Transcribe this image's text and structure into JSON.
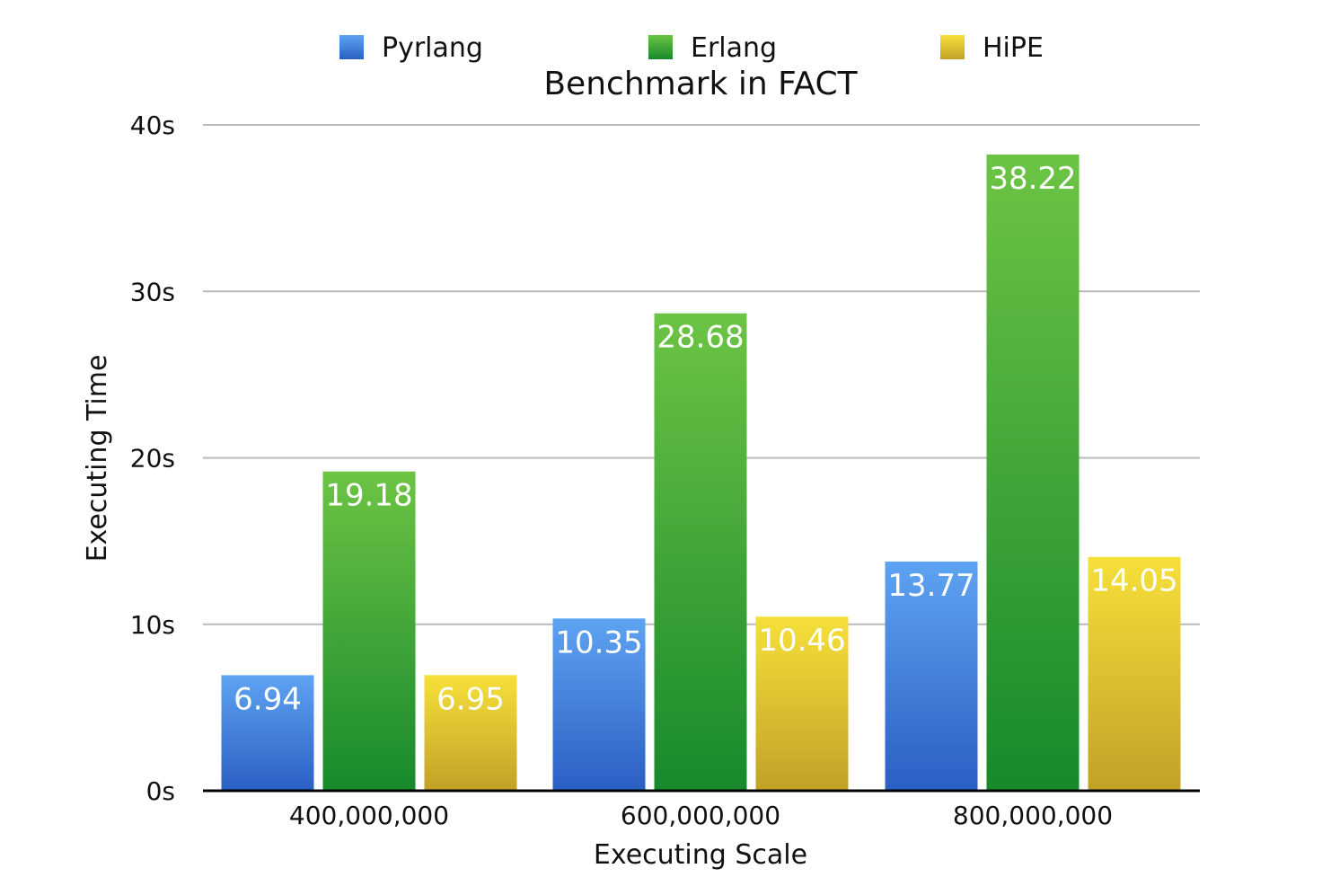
{
  "chart_data": {
    "type": "bar",
    "title": "Benchmark in FACT",
    "xlabel": "Executing Scale",
    "ylabel": "Executing Time",
    "categories": [
      "400,000,000",
      "600,000,000",
      "800,000,000"
    ],
    "ylim": [
      0,
      40
    ],
    "yticks": [
      {
        "value": 0,
        "label": "0s"
      },
      {
        "value": 10,
        "label": "10s"
      },
      {
        "value": 20,
        "label": "20s"
      },
      {
        "value": 30,
        "label": "30s"
      },
      {
        "value": 40,
        "label": "40s"
      }
    ],
    "grid": true,
    "legend_position": "top",
    "series": [
      {
        "name": "Pyrlang",
        "values": [
          6.94,
          10.35,
          13.77
        ],
        "labels": [
          "6.94",
          "10.35",
          "13.77"
        ],
        "color_top": "#5ea3f2",
        "color_bottom": "#2a5fc4"
      },
      {
        "name": "Erlang",
        "values": [
          19.18,
          28.68,
          38.22
        ],
        "labels": [
          "19.18",
          "28.68",
          "38.22"
        ],
        "color_top": "#6cc444",
        "color_bottom": "#17892c"
      },
      {
        "name": "HiPE",
        "values": [
          6.95,
          10.46,
          14.05
        ],
        "labels": [
          "6.95",
          "10.46",
          "14.05"
        ],
        "color_top": "#f6e03a",
        "color_bottom": "#c2a127"
      }
    ]
  }
}
